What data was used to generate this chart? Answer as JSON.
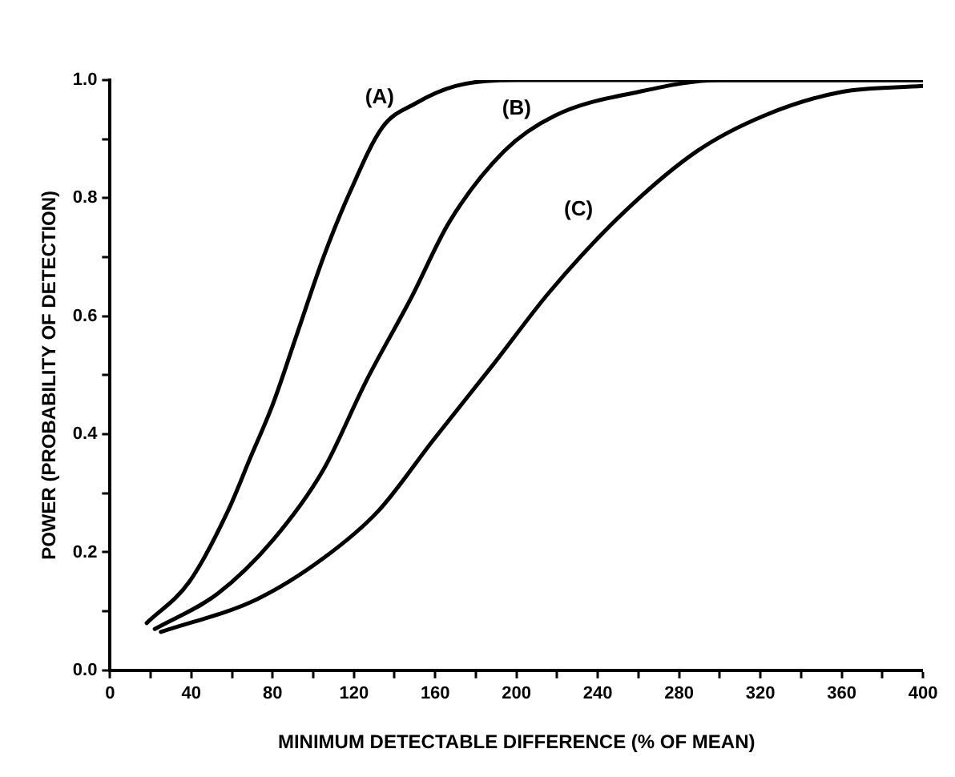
{
  "chart_data": {
    "type": "line",
    "xlabel": "MINIMUM DETECTABLE DIFFERENCE (% OF MEAN)",
    "ylabel": "POWER (PROBABILITY OF DETECTION)",
    "series": [
      {
        "name": "(A)",
        "color": "#000000",
        "x": [
          18,
          39,
          58,
          69,
          80,
          92,
          105,
          118,
          134,
          150,
          170,
          200,
          250,
          300,
          350,
          400
        ],
        "values": [
          0.08,
          0.15,
          0.27,
          0.36,
          0.45,
          0.57,
          0.7,
          0.81,
          0.92,
          0.96,
          0.99,
          1,
          1,
          1,
          1,
          1
        ]
      },
      {
        "name": "(B)",
        "color": "#000000",
        "x": [
          22,
          53,
          80,
          105,
          126,
          148,
          167,
          194,
          219,
          260,
          300,
          350,
          400
        ],
        "values": [
          0.07,
          0.13,
          0.22,
          0.34,
          0.49,
          0.63,
          0.76,
          0.88,
          0.94,
          0.98,
          1,
          1,
          1
        ]
      },
      {
        "name": "(C)",
        "color": "#000000",
        "x": [
          25,
          72,
          105,
          132,
          159,
          189,
          216,
          251,
          289,
          322,
          360,
          400
        ],
        "values": [
          0.065,
          0.12,
          0.19,
          0.27,
          0.39,
          0.52,
          0.64,
          0.77,
          0.88,
          0.94,
          0.98,
          0.99
        ]
      }
    ],
    "xlim": [
      0,
      400
    ],
    "ylim": [
      0,
      1
    ],
    "xticks": [
      0,
      {
        "value": 20,
        "label": null
      },
      40,
      {
        "value": 60,
        "label": null
      },
      80,
      {
        "value": 100,
        "label": null
      },
      120,
      {
        "value": 140,
        "label": null
      },
      160,
      {
        "value": 180,
        "label": null
      },
      200,
      {
        "value": 220,
        "label": null
      },
      240,
      {
        "value": 260,
        "label": null
      },
      280,
      {
        "value": 300,
        "label": null
      },
      320,
      {
        "value": 340,
        "label": null
      },
      360,
      {
        "value": 380,
        "label": null
      },
      400
    ],
    "yticks": [
      {
        "value": 0,
        "label": "0.0"
      },
      {
        "value": 0.1,
        "label": null
      },
      {
        "value": 0.2,
        "label": "0.2"
      },
      {
        "value": 0.3,
        "label": null
      },
      {
        "value": 0.4,
        "label": "0.4"
      },
      {
        "value": 0.5,
        "label": null
      },
      {
        "value": 0.6,
        "label": "0.6"
      },
      {
        "value": 0.7,
        "label": null
      },
      {
        "value": 0.8,
        "label": "0.8"
      },
      {
        "value": 0.9,
        "label": null
      },
      {
        "value": 1,
        "label": "1.0"
      }
    ],
    "grid": false,
    "legend": false,
    "marker": "none",
    "line_style": "solid"
  }
}
